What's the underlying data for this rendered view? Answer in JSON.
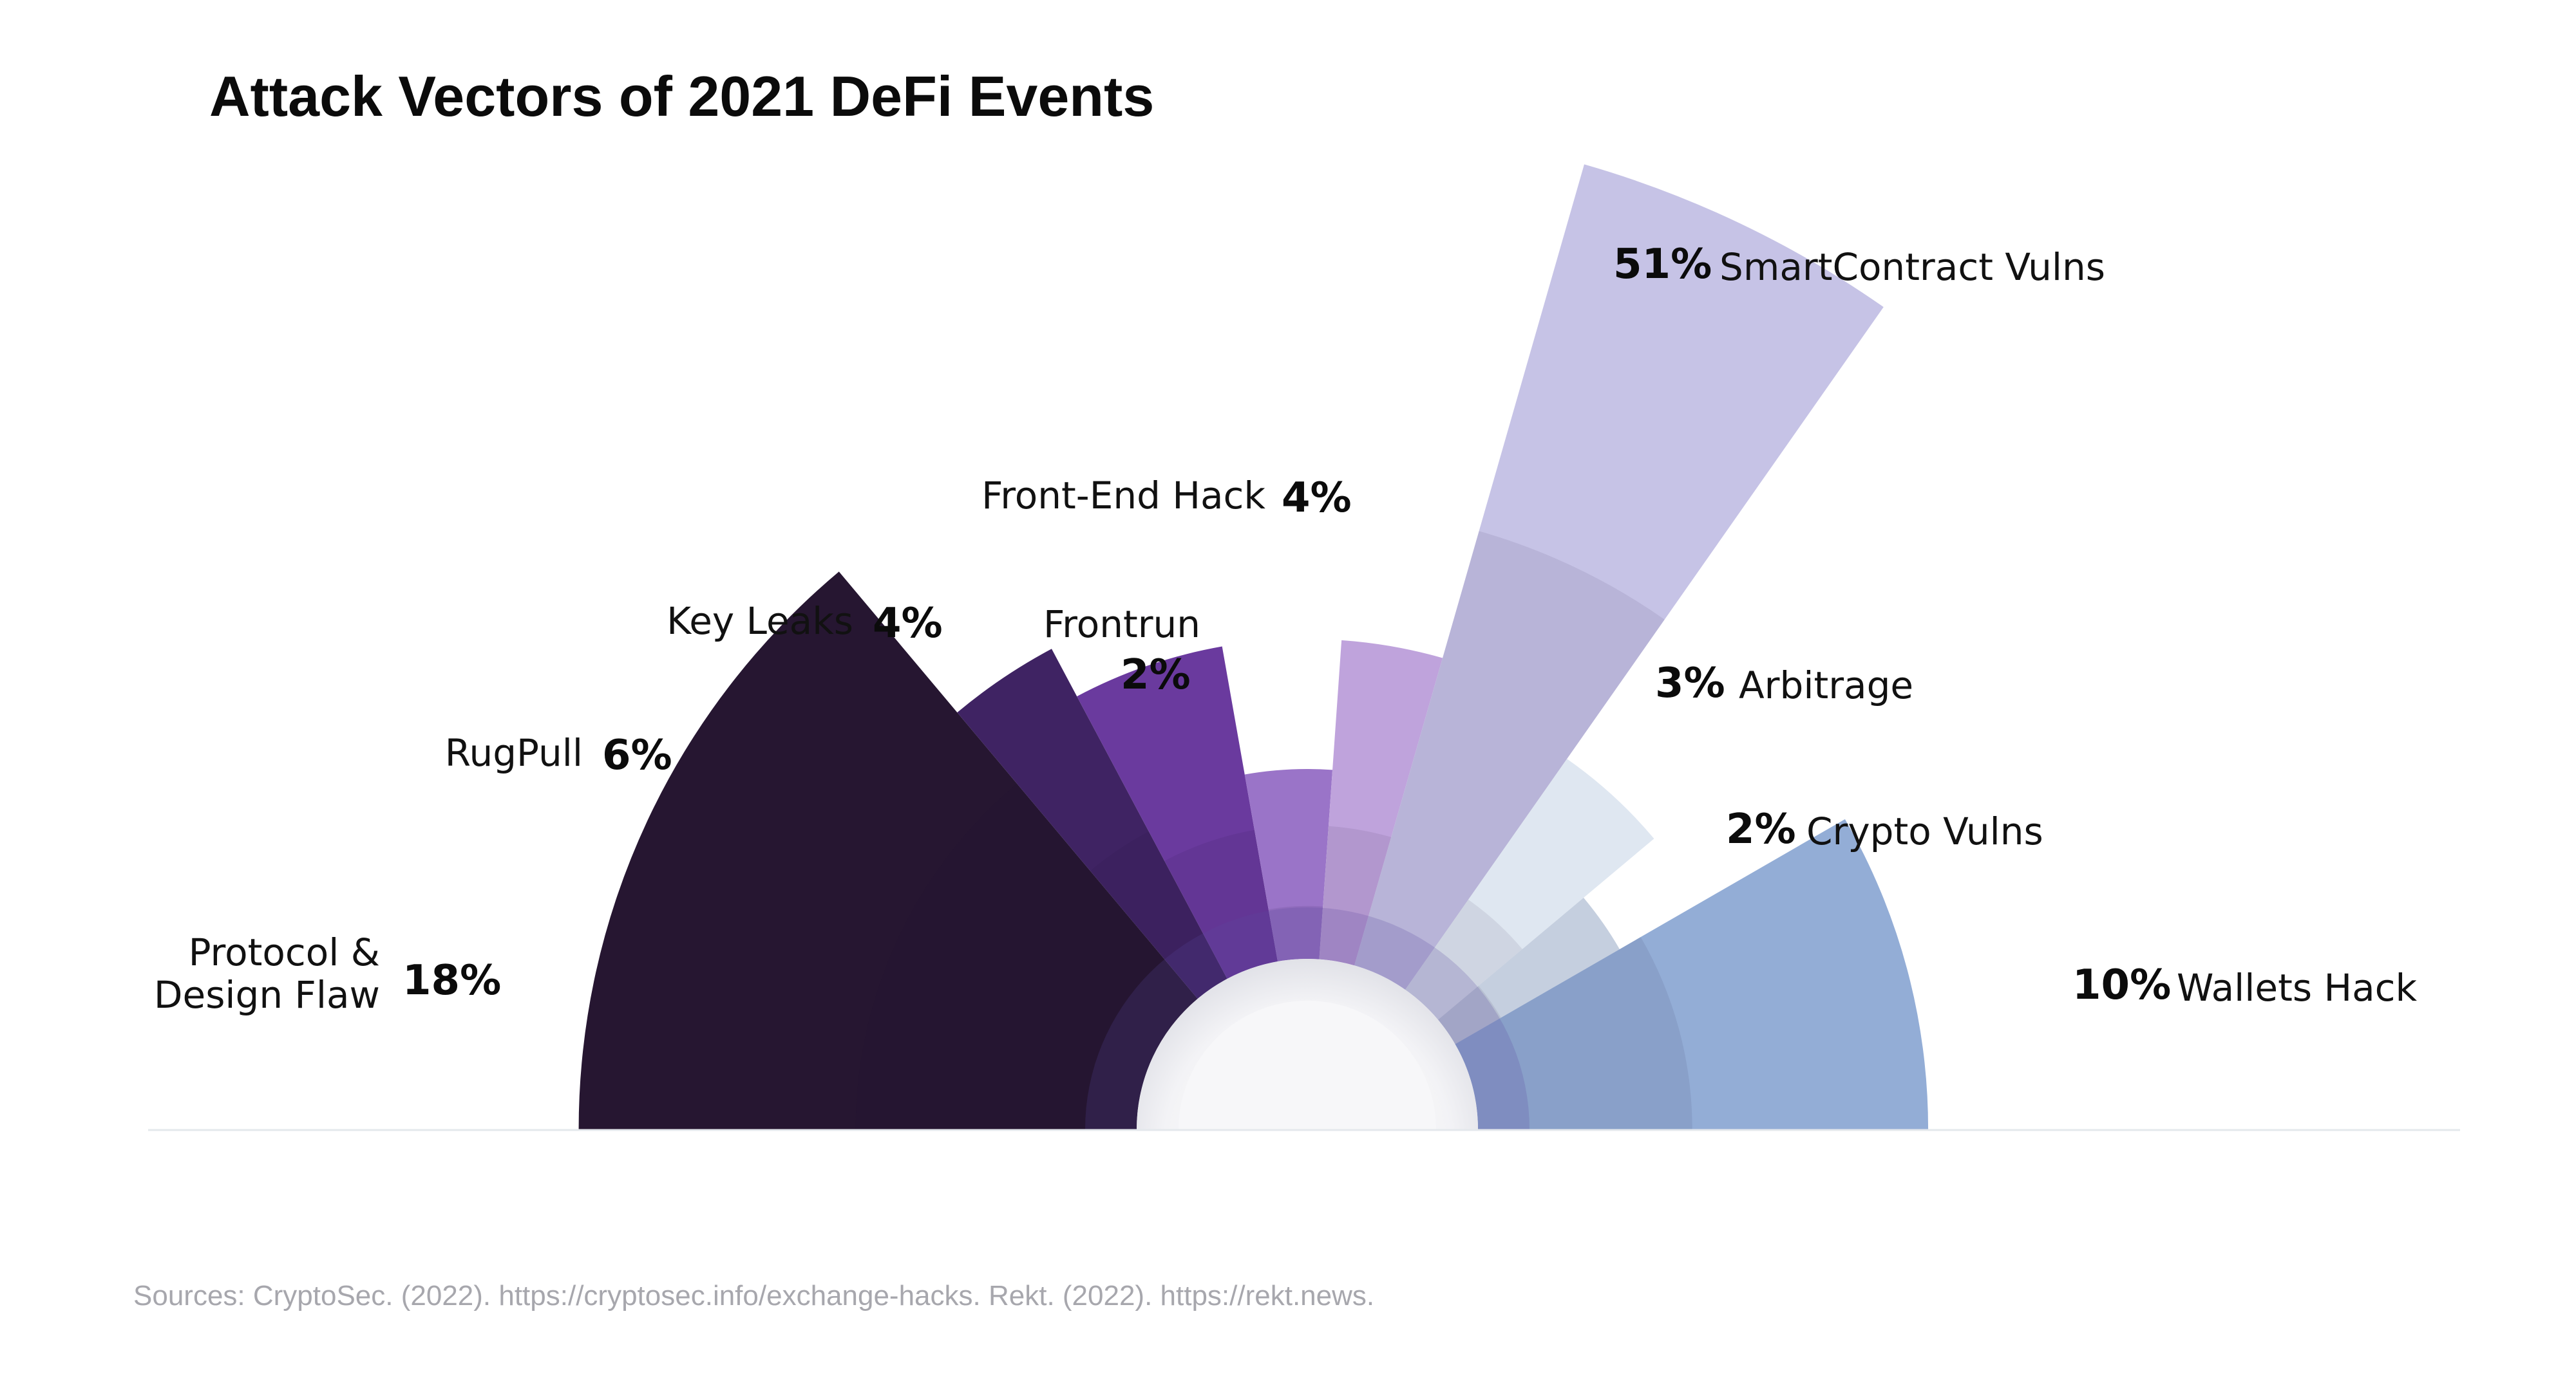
{
  "chart_data": {
    "type": "pie",
    "title": "Attack Vectors of 2021 DeFi Events",
    "unit": "%",
    "legend": "labels next to slices",
    "categories": [
      "Protocol & Design Flaw",
      "RugPull",
      "Key Leaks",
      "Frontrun",
      "Front-End Hack",
      "SmartContract Vulns",
      "Arbitrage",
      "Crypto Vulns",
      "Wallets Hack"
    ],
    "series": [
      {
        "values": [
          18,
          6,
          4,
          2,
          4,
          51,
          3,
          2,
          10
        ],
        "value_labels": [
          "18%",
          "6%",
          "4%",
          "2%",
          "4%",
          "51%",
          "3%",
          "2%",
          "10%"
        ],
        "label_lines": [
          [
            "Protocol &",
            "Design Flaw"
          ],
          [
            "RugPull"
          ],
          [
            "Key Leaks"
          ],
          [
            "Frontrun"
          ],
          [
            "Front-End Hack"
          ],
          [
            "SmartContract Vulns"
          ],
          [
            "Arbitrage"
          ],
          [
            "Crypto Vulns"
          ],
          [
            "Wallets Hack"
          ]
        ],
        "colors": [
          "#261631",
          "#3f2363",
          "#6a3a9e",
          "#9a74c8",
          "#bfa3dc",
          "#c6c3e6",
          "#dfe7f1",
          "#c5cfdf",
          "#93add6"
        ]
      }
    ]
  },
  "sources_text": "Sources:  CryptoSec. (2022). https://cryptosec.info/exchange-hacks. Rekt. (2022). https://rekt.news."
}
